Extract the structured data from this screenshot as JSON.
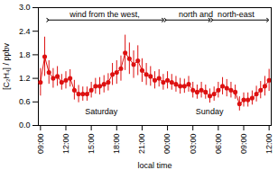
{
  "chart_data": {
    "type": "line",
    "xlabel": "local time",
    "ylabel": "[C₂H₄] / ppbv",
    "x": [
      0,
      1,
      2,
      3,
      4,
      5,
      6,
      7,
      8,
      9,
      10,
      11,
      12,
      13,
      14,
      15,
      16,
      17,
      18,
      19,
      20,
      21,
      22,
      23,
      24,
      25,
      26,
      27,
      28,
      29,
      30,
      31,
      32,
      33,
      34,
      35,
      36,
      37,
      38,
      39,
      40,
      41,
      42,
      43,
      44,
      45,
      46,
      47,
      48,
      49,
      50,
      51,
      52,
      53,
      54
    ],
    "values": [
      1.1,
      1.75,
      1.35,
      1.2,
      1.25,
      1.1,
      1.15,
      1.2,
      0.9,
      0.8,
      0.8,
      0.8,
      0.9,
      1.0,
      1.0,
      1.05,
      1.1,
      1.3,
      1.35,
      1.45,
      1.85,
      1.7,
      1.55,
      1.65,
      1.4,
      1.3,
      1.25,
      1.15,
      1.2,
      1.1,
      1.15,
      1.1,
      1.05,
      1.0,
      1.0,
      1.05,
      0.9,
      0.85,
      0.9,
      0.85,
      0.75,
      0.8,
      0.9,
      1.0,
      0.95,
      0.9,
      0.85,
      0.55,
      0.65,
      0.65,
      0.7,
      0.8,
      0.9,
      1.0,
      1.15
    ],
    "errors": [
      0.35,
      0.5,
      0.3,
      0.25,
      0.25,
      0.2,
      0.22,
      0.22,
      0.25,
      0.22,
      0.18,
      0.18,
      0.2,
      0.2,
      0.22,
      0.22,
      0.22,
      0.28,
      0.3,
      0.32,
      0.45,
      0.4,
      0.35,
      0.38,
      0.3,
      0.28,
      0.25,
      0.22,
      0.22,
      0.2,
      0.22,
      0.2,
      0.2,
      0.2,
      0.18,
      0.2,
      0.2,
      0.18,
      0.2,
      0.18,
      0.18,
      0.18,
      0.2,
      0.22,
      0.22,
      0.2,
      0.18,
      0.18,
      0.18,
      0.18,
      0.18,
      0.2,
      0.22,
      0.25,
      0.28
    ],
    "color": "#dd1111",
    "marker": "circle",
    "line_style": "solid",
    "grid": false,
    "xlim": [
      -0.5,
      54.5
    ],
    "xticks": [
      {
        "value": 0,
        "label": "09:00"
      },
      {
        "value": 6,
        "label": "12:00"
      },
      {
        "value": 12,
        "label": "15:00"
      },
      {
        "value": 18,
        "label": "18:00"
      },
      {
        "value": 24,
        "label": "21:00"
      },
      {
        "value": 30,
        "label": "00:00"
      },
      {
        "value": 36,
        "label": "03:00"
      },
      {
        "value": 42,
        "label": "06:00"
      },
      {
        "value": 48,
        "label": "09:00"
      },
      {
        "value": 54,
        "label": "12:00"
      }
    ],
    "ylim": [
      0.0,
      3.0
    ],
    "yticks": [
      {
        "value": 0.0,
        "label": "0.0"
      },
      0.6,
      1.2,
      1.8,
      2.4,
      {
        "value": 3.0,
        "label": "3.0"
      }
    ],
    "annotations": [
      "Saturday",
      "Sunday",
      "wind from the west,",
      "north and  north-east"
    ]
  }
}
